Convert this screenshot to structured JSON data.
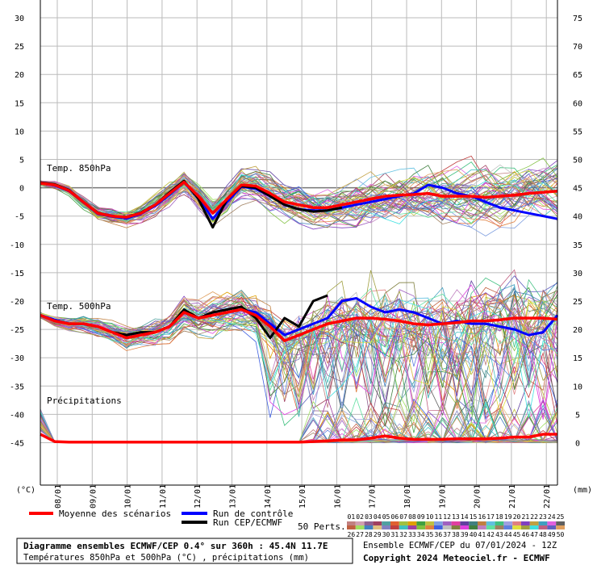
{
  "chart_data": {
    "type": "line",
    "left_axis": {
      "unit_label": "(°C)",
      "ylim": [
        -45,
        30
      ],
      "ticks": [
        "30",
        "25",
        "20",
        "15",
        "10",
        "5",
        "0",
        "-5",
        "-10",
        "-15",
        "-20",
        "-25",
        "-30",
        "-35",
        "-40",
        "-45"
      ]
    },
    "right_axis": {
      "unit_label": "(mm)",
      "ticks": [
        "75",
        "70",
        "65",
        "60",
        "55",
        "50",
        "45",
        "40",
        "35",
        "30",
        "25",
        "20",
        "15",
        "10",
        "5",
        "0"
      ]
    },
    "x_ticks": [
      "08/01",
      "09/01",
      "10/01",
      "11/01",
      "12/01",
      "13/01",
      "14/01",
      "15/01",
      "16/01",
      "17/01",
      "18/01",
      "19/01",
      "20/01",
      "21/01",
      "22/01"
    ],
    "panel_labels": {
      "t850": "Temp. 850hPa",
      "t500": "Temp. 500hPa",
      "precip": "Précipitations"
    },
    "legend": {
      "mean": "Moyenne des scénarios",
      "control": "Run de contrôle",
      "oper": "Run CEP/ECMWF",
      "perts_label": "50 Perts.",
      "perts_row1": [
        "01",
        "02",
        "03",
        "04",
        "05",
        "06",
        "07",
        "08",
        "09",
        "10",
        "11",
        "12",
        "13",
        "14",
        "15",
        "16",
        "17",
        "18",
        "19",
        "20",
        "21",
        "22",
        "23",
        "24",
        "25"
      ],
      "perts_row2": [
        "26",
        "27",
        "28",
        "29",
        "30",
        "31",
        "32",
        "33",
        "34",
        "35",
        "36",
        "37",
        "38",
        "39",
        "40",
        "41",
        "42",
        "43",
        "44",
        "45",
        "46",
        "47",
        "48",
        "49",
        "50"
      ]
    },
    "info": {
      "title": "Diagramme ensembles ECMWF/CEP 0.4° sur 360h : 45.4N 11.7E",
      "subtitle": "Températures 850hPa et 500hPa (°C) , précipitations (mm)",
      "run": "Ensemble ECMWF/CEP du 07/01/2024 - 12Z",
      "copyright": "Copyright 2024 Meteociel.fr - ECMWF"
    },
    "series": [
      {
        "name": "Moyenne des scénarios",
        "panel": "t850",
        "color": "#ff0000",
        "values": [
          0.8,
          0.5,
          -0.5,
          -2.5,
          -4.5,
          -5.0,
          -5.2,
          -4.5,
          -3.0,
          -1.0,
          1.0,
          -1.5,
          -4.5,
          -2.0,
          0.5,
          0.3,
          -1.0,
          -2.5,
          -3.0,
          -3.5,
          -3.5,
          -3.0,
          -2.5,
          -2.0,
          -1.5,
          -1.3,
          -1.2,
          -1.0,
          -1.5,
          -1.5,
          -1.5,
          -1.7,
          -1.5,
          -1.3,
          -1.0,
          -0.8,
          -0.6
        ]
      },
      {
        "name": "Run de contrôle",
        "panel": "t850",
        "color": "#0000ff",
        "values": [
          0.8,
          0.4,
          -0.6,
          -2.6,
          -4.6,
          -5.1,
          -5.4,
          -4.6,
          -3.2,
          -1.2,
          1.0,
          -1.8,
          -5.5,
          -2.5,
          0.2,
          -0.2,
          -1.5,
          -3.0,
          -3.8,
          -4.0,
          -4.0,
          -3.5,
          -3.0,
          -2.5,
          -2.0,
          -1.5,
          -1.0,
          0.5,
          0.0,
          -1.0,
          -1.5,
          -2.5,
          -3.5,
          -4.0,
          -4.5,
          -5.0,
          -5.5
        ]
      },
      {
        "name": "Run CEP/ECMWF",
        "panel": "t850",
        "color": "#000000",
        "values": [
          0.9,
          0.6,
          -0.4,
          -2.5,
          -4.4,
          -5.0,
          -5.2,
          -4.4,
          -3.0,
          -0.8,
          1.2,
          -2.0,
          -7.0,
          -2.0,
          0.3,
          0.0,
          -1.5,
          -3.0,
          -3.8,
          -4.2,
          -4.0,
          -3.5
        ]
      },
      {
        "name": "Moyenne des scénarios",
        "panel": "t500",
        "color": "#ff0000",
        "values": [
          -22.5,
          -23.5,
          -24.0,
          -24.0,
          -24.5,
          -25.5,
          -26.5,
          -26.0,
          -25.5,
          -24.5,
          -22.0,
          -23.0,
          -22.5,
          -22.0,
          -21.5,
          -22.5,
          -24.5,
          -27.0,
          -26.0,
          -25.0,
          -24.0,
          -23.5,
          -23.0,
          -23.0,
          -23.2,
          -23.5,
          -24.0,
          -24.2,
          -24.0,
          -23.8,
          -23.5,
          -23.5,
          -23.3,
          -23.0,
          -23.0,
          -23.0,
          -23.2
        ]
      },
      {
        "name": "Run de contrôle",
        "panel": "t500",
        "color": "#0000ff",
        "values": [
          -22.5,
          -23.3,
          -24.0,
          -24.0,
          -24.5,
          -25.5,
          -26.5,
          -26.0,
          -25.5,
          -24.5,
          -22.0,
          -23.0,
          -22.5,
          -22.0,
          -21.5,
          -22.0,
          -24.0,
          -26.0,
          -25.0,
          -24.0,
          -23.0,
          -20.0,
          -19.5,
          -21.0,
          -22.0,
          -21.5,
          -22.0,
          -23.0,
          -24.0,
          -23.5,
          -24.0,
          -24.0,
          -24.5,
          -25.0,
          -26.0,
          -25.5,
          -22.5
        ]
      },
      {
        "name": "Run CEP/ECMWF",
        "panel": "t500",
        "color": "#000000",
        "values": [
          -22.5,
          -23.5,
          -24.0,
          -24.0,
          -24.5,
          -25.5,
          -26.0,
          -25.5,
          -25.5,
          -24.5,
          -21.5,
          -23.0,
          -22.0,
          -21.5,
          -21.0,
          -23.0,
          -26.5,
          -23.0,
          -24.5,
          -20.0,
          -19.0
        ]
      },
      {
        "name": "Moyenne des scénarios",
        "panel": "precip",
        "color": "#ff0000",
        "values": [
          1.5,
          0.2,
          0.1,
          0.1,
          0.1,
          0.1,
          0.1,
          0.1,
          0.1,
          0.1,
          0.1,
          0.1,
          0.1,
          0.1,
          0.1,
          0.1,
          0.1,
          0.1,
          0.1,
          0.2,
          0.3,
          0.5,
          0.5,
          0.8,
          1.2,
          0.8,
          0.6,
          0.6,
          0.6,
          0.7,
          0.7,
          0.7,
          0.8,
          1.0,
          1.0,
          1.5,
          1.5
        ]
      }
    ]
  }
}
